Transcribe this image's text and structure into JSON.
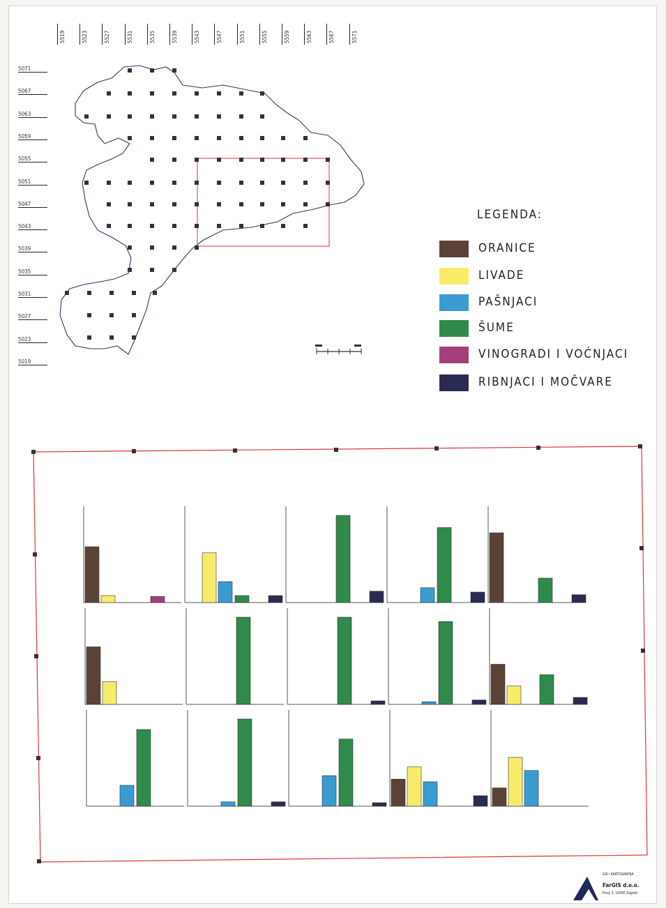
{
  "grid": {
    "x_labels": [
      "5519",
      "5523",
      "5527",
      "5531",
      "5535",
      "5539",
      "5543",
      "5547",
      "5551",
      "5555",
      "5559",
      "5563",
      "5567",
      "5571"
    ],
    "y_labels": [
      "5071",
      "5067",
      "5063",
      "5059",
      "5055",
      "5051",
      "5047",
      "5043",
      "5039",
      "5035",
      "5031",
      "5027",
      "5023",
      "5019"
    ]
  },
  "legend": {
    "title": "LEGENDA:",
    "items": [
      {
        "label": "ORANICE",
        "color": "#5a4336"
      },
      {
        "label": "LIVADE",
        "color": "#f7ec6a"
      },
      {
        "label": "PAŠNJACI",
        "color": "#3a9bd0"
      },
      {
        "label": "ŠUME",
        "color": "#2f8a4c"
      },
      {
        "label": "VINOGRADI I VOĆNJACI",
        "color": "#a3407a"
      },
      {
        "label": "RIBNJACI I MOČVARE",
        "color": "#2b2b52"
      }
    ]
  },
  "colors": {
    "frame": "#e0323c",
    "map_outline": "#2a3a6a",
    "grid_point": "#333333"
  },
  "chart_data": {
    "type": "bar",
    "layout": "3x5 grid of small multiples",
    "categories": [
      "ORANICE",
      "LIVADE",
      "PAŠNJACI",
      "ŠUME",
      "VINOGRADI I VOĆNJACI",
      "RIBNJACI I MOČVARE"
    ],
    "panels": [
      {
        "values": [
          64,
          8,
          0,
          0,
          7,
          0
        ]
      },
      {
        "values": [
          0,
          57,
          24,
          8,
          0,
          8
        ]
      },
      {
        "values": [
          0,
          0,
          0,
          100,
          0,
          13
        ]
      },
      {
        "values": [
          0,
          0,
          17,
          86,
          0,
          12
        ]
      },
      {
        "values": [
          80,
          0,
          0,
          28,
          0,
          9
        ]
      },
      {
        "values": [
          66,
          26,
          0,
          0,
          0,
          0
        ]
      },
      {
        "values": [
          0,
          0,
          0,
          100,
          0,
          0
        ]
      },
      {
        "values": [
          0,
          0,
          0,
          100,
          0,
          4
        ]
      },
      {
        "values": [
          0,
          0,
          3,
          95,
          0,
          5
        ]
      },
      {
        "values": [
          46,
          21,
          0,
          34,
          0,
          8
        ]
      },
      {
        "values": [
          0,
          0,
          24,
          88,
          0,
          0
        ]
      },
      {
        "values": [
          0,
          0,
          5,
          100,
          0,
          5
        ]
      },
      {
        "values": [
          0,
          0,
          35,
          77,
          0,
          4
        ]
      },
      {
        "values": [
          31,
          45,
          28,
          0,
          0,
          12
        ]
      },
      {
        "values": [
          21,
          56,
          41,
          0,
          0,
          0
        ]
      }
    ],
    "ylim": [
      0,
      100
    ]
  },
  "company": {
    "line1": "GIS i KARTOGRAFIJA",
    "name": "FarGIS d.o.o.",
    "address": "Prvoj 3, 10000 Zagreb"
  }
}
